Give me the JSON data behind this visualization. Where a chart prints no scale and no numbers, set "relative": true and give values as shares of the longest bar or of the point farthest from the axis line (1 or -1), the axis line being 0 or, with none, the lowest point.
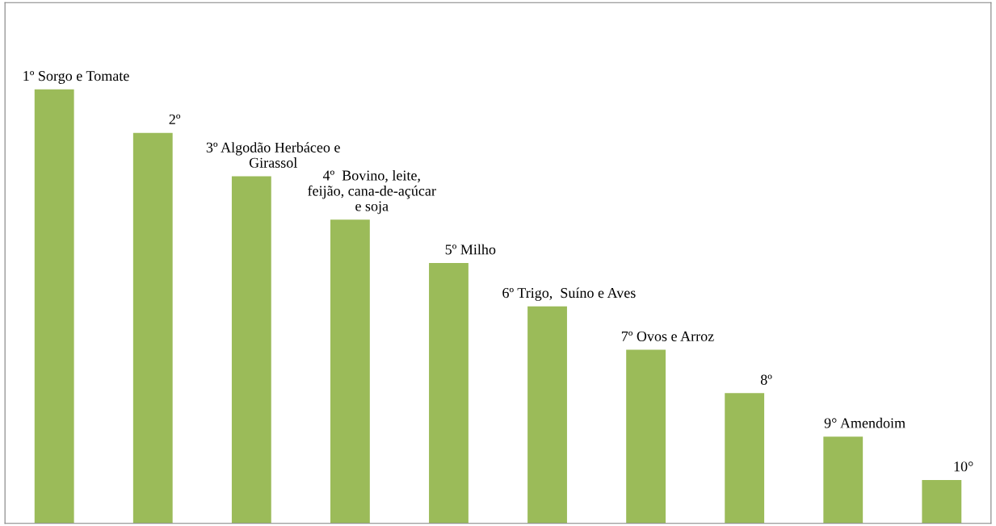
{
  "chart_data": {
    "type": "bar",
    "relative": true,
    "categories": [
      "1º Sorgo e Tomate",
      "2º",
      "3º Algodão Herbáceo e\nGirassol",
      "4º  Bovino, leite,\nfeijão, cana-de-açúcar\ne soja",
      "5º Milho",
      "6º Trigo,  Suíno e Aves",
      "7º Ovos e Arroz",
      "8º",
      "9° Amendoim",
      "10°"
    ],
    "values": [
      1,
      0.9,
      0.8,
      0.7,
      0.6,
      0.5,
      0.4,
      0.3,
      0.2,
      0.1
    ],
    "color": "#9bbb59"
  }
}
